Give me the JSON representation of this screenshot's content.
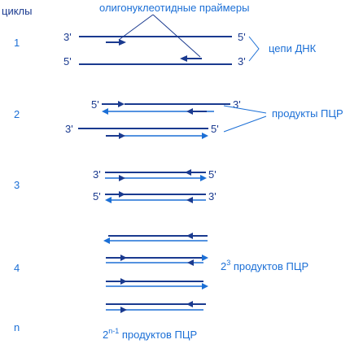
{
  "colors": {
    "strand_dark": "#1a3a8f",
    "strand_light": "#1b6fd6",
    "text_blue": "#1b6fd6",
    "text_dark": "#1a3a8f"
  },
  "header": {
    "cycles_label": "циклы",
    "primers_label": "олигонуклеотидные праймеры"
  },
  "cycles": [
    {
      "number": "1"
    },
    {
      "number": "2"
    },
    {
      "number": "3"
    },
    {
      "number": "4"
    },
    {
      "number": "n"
    }
  ],
  "labels": {
    "dna_strands": "цепи ДНК",
    "pcr_products": "продукты ПЦР",
    "cycle4_base": "2",
    "cycle4_exp": "3",
    "cycle4_text": " продуктов ПЦР",
    "cyclen_base": "2",
    "cyclen_exp": "n-1",
    "cyclen_text": " продуктов ПЦР"
  },
  "ends": {
    "three_prime": "3'",
    "five_prime": "5'"
  }
}
